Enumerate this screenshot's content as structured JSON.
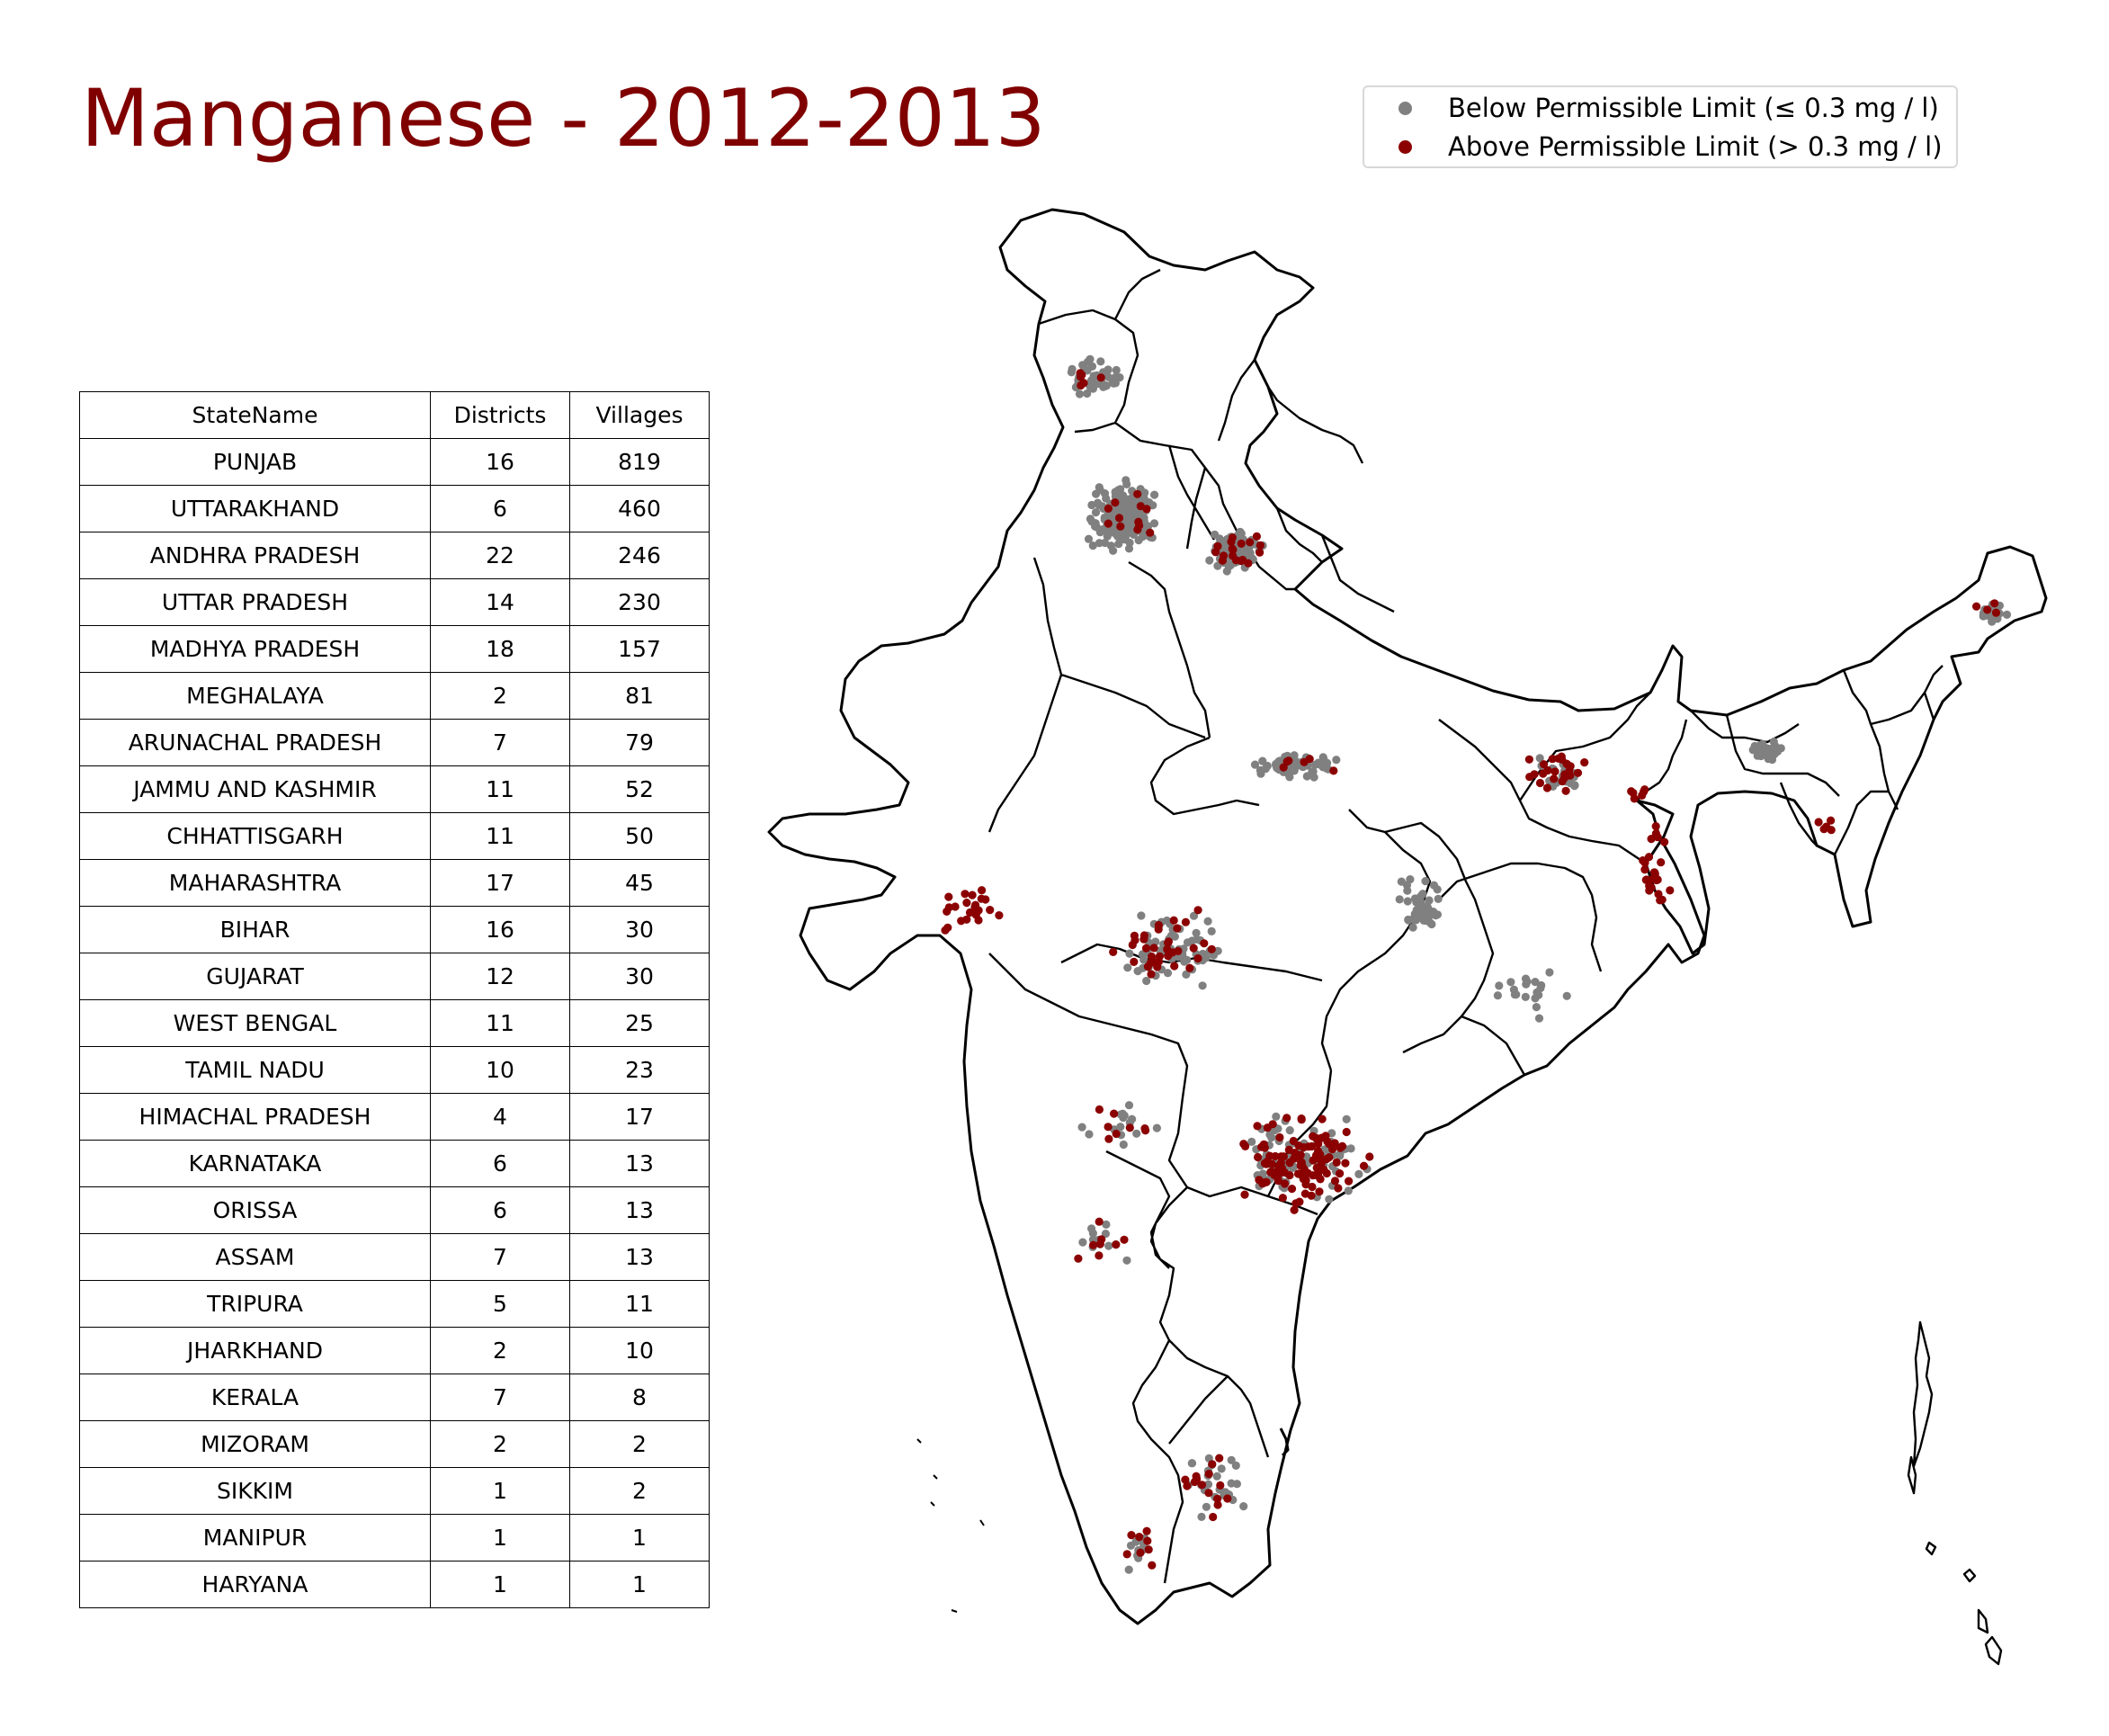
{
  "title": "Manganese - 2012-2013",
  "legend": {
    "below": {
      "label": "Below Permissible Limit (≤ 0.3 mg / l)",
      "color": "#808080"
    },
    "above": {
      "label": "Above Permissible Limit (> 0.3 mg / l)",
      "color": "#8b0000"
    }
  },
  "table": {
    "headers": [
      "StateName",
      "Districts",
      "Villages"
    ],
    "rows": [
      [
        "PUNJAB",
        "16",
        "819"
      ],
      [
        "UTTARAKHAND",
        "6",
        "460"
      ],
      [
        "ANDHRA PRADESH",
        "22",
        "246"
      ],
      [
        "UTTAR PRADESH",
        "14",
        "230"
      ],
      [
        "MADHYA PRADESH",
        "18",
        "157"
      ],
      [
        "MEGHALAYA",
        "2",
        "81"
      ],
      [
        "ARUNACHAL PRADESH",
        "7",
        "79"
      ],
      [
        "JAMMU AND KASHMIR",
        "11",
        "52"
      ],
      [
        "CHHATTISGARH",
        "11",
        "50"
      ],
      [
        "MAHARASHTRA",
        "17",
        "45"
      ],
      [
        "BIHAR",
        "16",
        "30"
      ],
      [
        "GUJARAT",
        "12",
        "30"
      ],
      [
        "WEST BENGAL",
        "11",
        "25"
      ],
      [
        "TAMIL NADU",
        "10",
        "23"
      ],
      [
        "HIMACHAL PRADESH",
        "4",
        "17"
      ],
      [
        "KARNATAKA",
        "6",
        "13"
      ],
      [
        "ORISSA",
        "6",
        "13"
      ],
      [
        "ASSAM",
        "7",
        "13"
      ],
      [
        "TRIPURA",
        "5",
        "11"
      ],
      [
        "JHARKHAND",
        "2",
        "10"
      ],
      [
        "KERALA",
        "7",
        "8"
      ],
      [
        "MIZORAM",
        "2",
        "2"
      ],
      [
        "SIKKIM",
        "1",
        "2"
      ],
      [
        "MANIPUR",
        "1",
        "1"
      ],
      [
        "HARYANA",
        "1",
        "1"
      ]
    ]
  },
  "map": {
    "region": "India",
    "clusters_below": [
      {
        "state": "JAMMU AND KASHMIR",
        "count": 45
      },
      {
        "state": "PUNJAB",
        "count": 230
      },
      {
        "state": "UTTARAKHAND",
        "count": 120
      },
      {
        "state": "UTTAR PRADESH",
        "count": 60
      },
      {
        "state": "MADHYA PRADESH",
        "count": 60
      },
      {
        "state": "CHHATTISGARH",
        "count": 45
      },
      {
        "state": "ANDHRA PRADESH",
        "count": 90
      },
      {
        "state": "MEGHALAYA",
        "count": 40
      },
      {
        "state": "ARUNACHAL PRADESH",
        "count": 25
      },
      {
        "state": "BIHAR",
        "count": 25
      },
      {
        "state": "KERALA",
        "count": 10
      },
      {
        "state": "TAMIL NADU",
        "count": 25
      },
      {
        "state": "KARNATAKA",
        "count": 12
      },
      {
        "state": "ORISSA",
        "count": 20
      },
      {
        "state": "MAHARASHTRA",
        "count": 15
      }
    ],
    "clusters_above": [
      {
        "state": "JAMMU AND KASHMIR",
        "count": 6
      },
      {
        "state": "PUNJAB",
        "count": 12
      },
      {
        "state": "UTTARAKHAND",
        "count": 18
      },
      {
        "state": "UTTAR PRADESH",
        "count": 6
      },
      {
        "state": "GUJARAT",
        "count": 22
      },
      {
        "state": "MADHYA PRADESH",
        "count": 35
      },
      {
        "state": "ANDHRA PRADESH",
        "count": 110
      },
      {
        "state": "BIHAR",
        "count": 25
      },
      {
        "state": "WEST BENGAL",
        "count": 25
      },
      {
        "state": "JHARKHAND",
        "count": 6
      },
      {
        "state": "TAMIL NADU",
        "count": 15
      },
      {
        "state": "KERALA",
        "count": 8
      },
      {
        "state": "KARNATAKA",
        "count": 8
      },
      {
        "state": "MAHARASHTRA",
        "count": 8
      },
      {
        "state": "ARUNACHAL PRADESH",
        "count": 4
      },
      {
        "state": "TRIPURA",
        "count": 5
      }
    ]
  }
}
